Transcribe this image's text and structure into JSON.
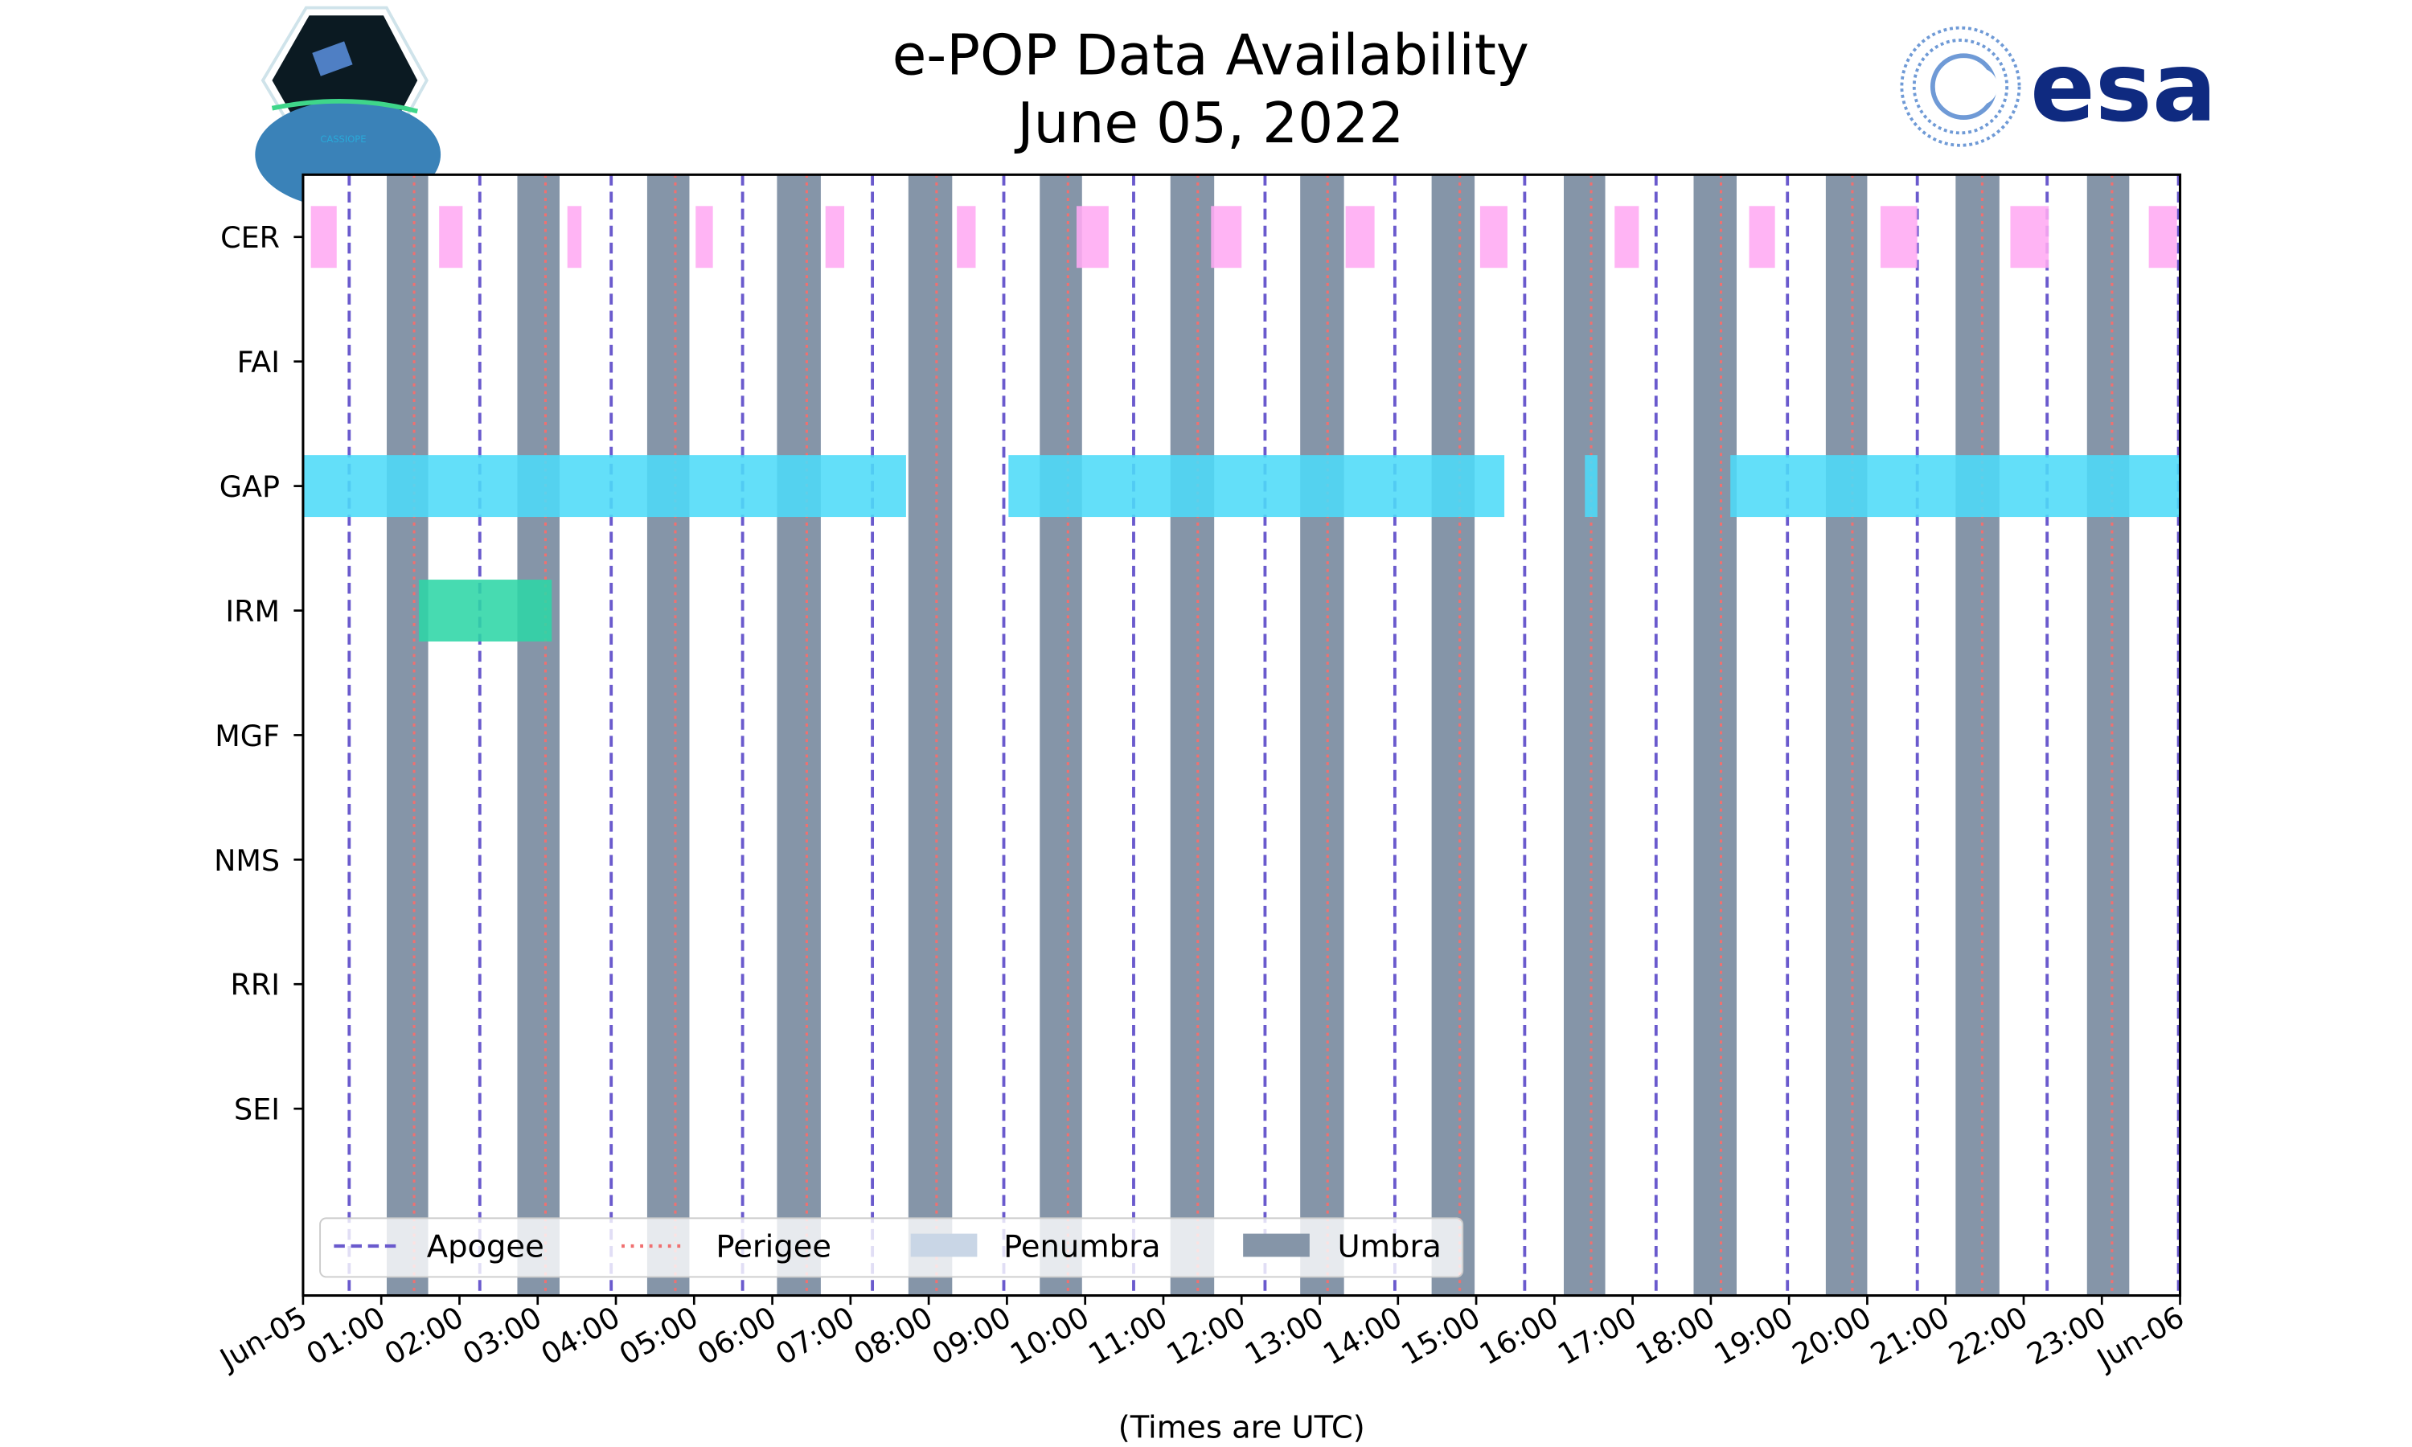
{
  "chart_data": {
    "type": "timeline",
    "title": "e-POP Data Availability",
    "subtitle": "June 05, 2022",
    "xlabel": "(Times are UTC)",
    "xlim_hours": [
      0,
      24
    ],
    "x_tick_labels": [
      "Jun-05",
      "01:00",
      "02:00",
      "03:00",
      "04:00",
      "05:00",
      "06:00",
      "07:00",
      "08:00",
      "09:00",
      "10:00",
      "11:00",
      "12:00",
      "13:00",
      "14:00",
      "15:00",
      "16:00",
      "17:00",
      "18:00",
      "19:00",
      "20:00",
      "21:00",
      "22:00",
      "23:00",
      "Jun-06"
    ],
    "instruments": [
      "CER",
      "FAI",
      "GAP",
      "IRM",
      "MGF",
      "NMS",
      "RRI",
      "SEI"
    ],
    "availability": {
      "CER": [
        [
          0.1,
          0.43
        ],
        [
          1.74,
          2.04
        ],
        [
          3.38,
          3.56
        ],
        [
          5.02,
          5.24
        ],
        [
          6.68,
          6.92
        ],
        [
          8.36,
          8.6
        ],
        [
          9.89,
          10.3
        ],
        [
          11.61,
          12.0
        ],
        [
          13.33,
          13.7
        ],
        [
          15.05,
          15.4
        ],
        [
          16.77,
          17.08
        ],
        [
          18.49,
          18.82
        ],
        [
          20.17,
          20.64
        ],
        [
          21.83,
          22.32
        ],
        [
          23.6,
          23.96
        ]
      ],
      "FAI": [],
      "GAP": [
        [
          0.0,
          7.71
        ],
        [
          9.02,
          15.36
        ],
        [
          16.39,
          16.55
        ],
        [
          18.25,
          24.0
        ]
      ],
      "IRM": [
        [
          1.48,
          3.18
        ]
      ],
      "MGF": [],
      "NMS": [],
      "RRI": [],
      "SEI": []
    },
    "umbra_hours": [
      [
        1.07,
        1.6
      ],
      [
        2.74,
        3.28
      ],
      [
        4.4,
        4.94
      ],
      [
        6.06,
        6.62
      ],
      [
        7.74,
        8.3
      ],
      [
        9.42,
        9.96
      ],
      [
        11.09,
        11.65
      ],
      [
        12.75,
        13.31
      ],
      [
        14.43,
        14.98
      ],
      [
        16.12,
        16.65
      ],
      [
        17.78,
        18.33
      ],
      [
        19.47,
        20.0
      ],
      [
        21.13,
        21.69
      ],
      [
        22.81,
        23.35
      ]
    ],
    "apogee_hours": [
      0.59,
      2.26,
      3.94,
      5.62,
      7.28,
      8.96,
      10.62,
      12.3,
      13.96,
      15.62,
      17.3,
      18.98,
      20.64,
      22.3,
      23.98
    ],
    "perigee_hours": [
      1.42,
      3.1,
      4.76,
      6.44,
      8.1,
      9.78,
      11.44,
      13.1,
      14.79,
      16.47,
      18.13,
      19.81,
      21.47,
      23.13
    ],
    "legend": {
      "placement": "lower-left",
      "entries": [
        "Apogee",
        "Perigee",
        "Penumbra",
        "Umbra"
      ]
    },
    "colors": {
      "CER": "#ffaaf2",
      "GAP": "#4ddbf8",
      "IRM": "#2ed6a6",
      "umbra": "#8595a8",
      "penumbra": "#c9d6e6",
      "apogee": "#6a5acd",
      "perigee": "#f07070"
    }
  },
  "logos": {
    "left": "CASSIOPE",
    "right": "esa"
  }
}
